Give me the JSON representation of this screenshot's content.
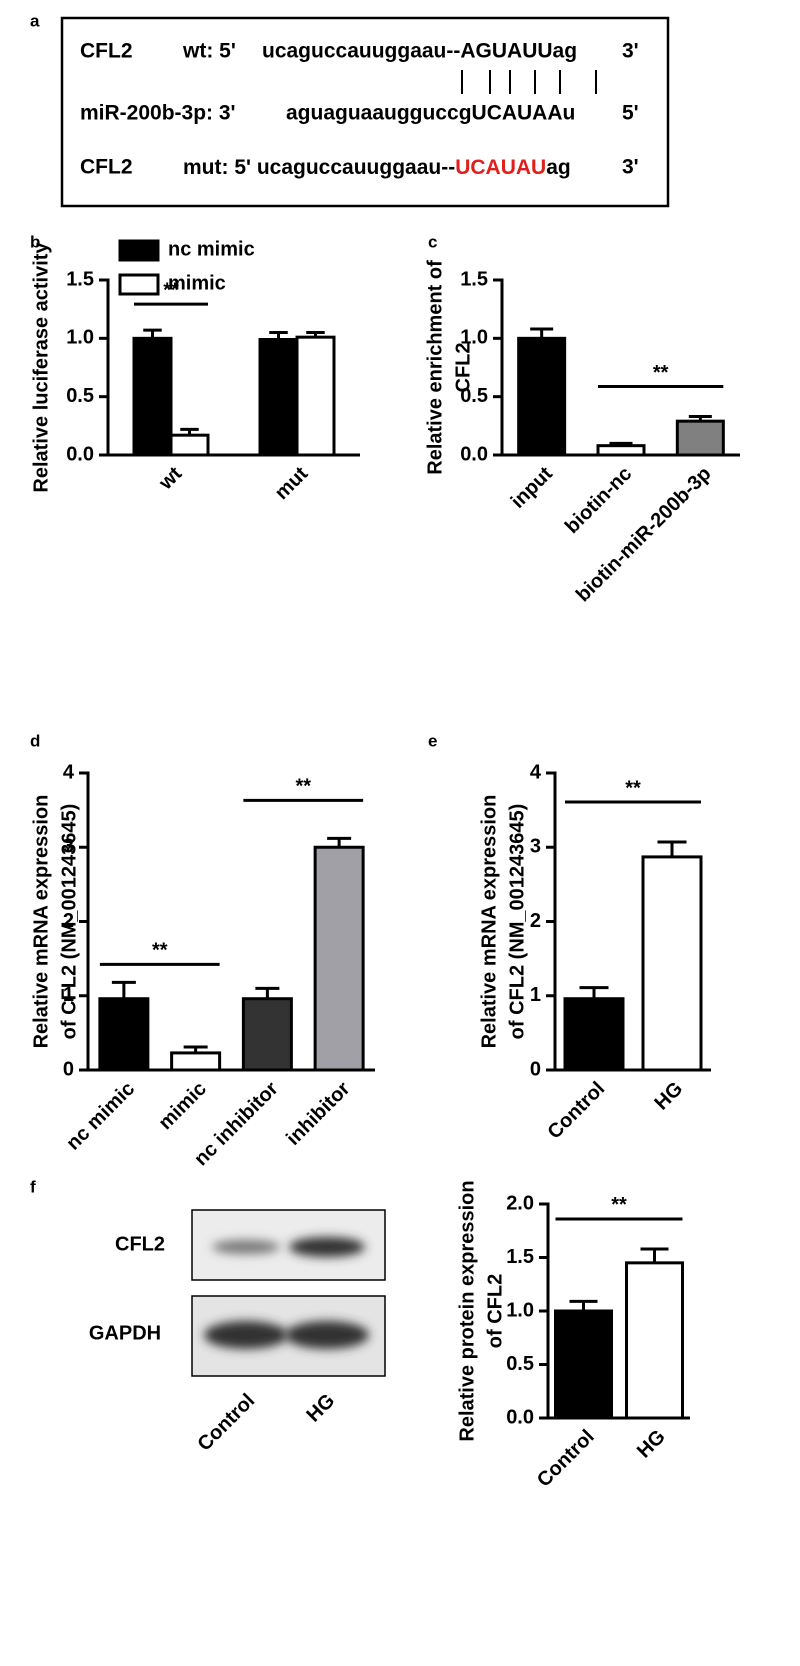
{
  "panel_letters": [
    "a",
    "b",
    "c",
    "d",
    "e",
    "f"
  ],
  "panel_a": {
    "rows": [
      {
        "name": "CFL2",
        "strand": "wt: 5'",
        "seq": "ucaguccauuggaau--AGUAUUag",
        "end": "3'"
      },
      {
        "name": "miR-200b-3p: 3'",
        "seq": "aguaguaaugguccgUCAUAAu",
        "end": "5'"
      },
      {
        "name": "CFL2",
        "strand": "mut: 5'",
        "seq": "ucaguccauuggaau--",
        "highlight": "UCAUAU",
        "highlight_color": "#e0201b",
        "seq_end": "ag",
        "end": "3'"
      }
    ]
  },
  "blot": {
    "rows": [
      "CFL2",
      "GAPDH"
    ],
    "lanes": [
      "Control",
      "HG"
    ]
  },
  "chart_data": [
    {
      "type": "bar",
      "ylabel": [
        "Relative luciferase activity"
      ],
      "categories": [
        "wt",
        "mut"
      ],
      "series": [
        {
          "name": "nc mimic",
          "color": "#000000",
          "values": [
            1.0,
            0.99
          ],
          "errors": [
            0.07,
            0.06
          ]
        },
        {
          "name": "mimic",
          "color": "#ffffff",
          "values": [
            0.17,
            1.01
          ],
          "errors": [
            0.05,
            0.04
          ]
        }
      ],
      "ylim": [
        0,
        1.5
      ],
      "yticks": [
        {
          "value": 0,
          "label": "0.0"
        },
        0.5,
        {
          "value": 1,
          "label": "1.0"
        },
        1.5
      ],
      "legend": "top-left",
      "annotations": [
        "**"
      ]
    },
    {
      "type": "bar",
      "ylabel": [
        "Relative enrichment of",
        "CFL2"
      ],
      "categories": [
        "input",
        "biotin-nc",
        "biotin-miR-200b-3p"
      ],
      "values": [
        1.0,
        0.08,
        0.29
      ],
      "errors": [
        0.08,
        0.02,
        0.04
      ],
      "colors": [
        "#000000",
        "#ffffff",
        "#808080"
      ],
      "ylim": [
        0,
        1.5
      ],
      "yticks": [
        {
          "value": 0,
          "label": "0.0"
        },
        0.5,
        {
          "value": 1,
          "label": "1.0"
        },
        1.5
      ],
      "annotations": [
        "**"
      ]
    },
    {
      "type": "bar",
      "ylabel": [
        "Relative mRNA expression",
        "of CFL2 (NM_001243645)"
      ],
      "categories": [
        "nc mimic",
        "mimic",
        "nc inhibitor",
        "inhibitor"
      ],
      "values": [
        0.96,
        0.23,
        0.96,
        3.0
      ],
      "errors": [
        0.22,
        0.08,
        0.14,
        0.12
      ],
      "colors": [
        "#000000",
        "#ffffff",
        "#333333",
        "#a0a0a6"
      ],
      "ylim": [
        0,
        4
      ],
      "yticks": [
        0,
        1,
        2,
        3,
        4
      ],
      "annotations": [
        "**",
        "**"
      ]
    },
    {
      "type": "bar",
      "ylabel": [
        "Relative mRNA expression",
        "of CFL2 (NM_001243645)"
      ],
      "categories": [
        "Control",
        "HG"
      ],
      "values": [
        0.96,
        2.87
      ],
      "errors": [
        0.15,
        0.2
      ],
      "colors": [
        "#000000",
        "#ffffff"
      ],
      "ylim": [
        0,
        4
      ],
      "yticks": [
        0,
        1,
        2,
        3,
        4
      ],
      "annotations": [
        "**"
      ]
    },
    {
      "type": "bar",
      "ylabel": [
        "Relative protein expression",
        "of CFL2"
      ],
      "categories": [
        "Control",
        "HG"
      ],
      "values": [
        1.0,
        1.45
      ],
      "errors": [
        0.09,
        0.13
      ],
      "colors": [
        "#000000",
        "#ffffff"
      ],
      "ylim": [
        0,
        2
      ],
      "yticks": [
        {
          "value": 0,
          "label": "0.0"
        },
        0.5,
        {
          "value": 1,
          "label": "1.0"
        },
        1.5,
        {
          "value": 2,
          "label": "2.0"
        }
      ],
      "annotations": [
        "**"
      ]
    }
  ]
}
